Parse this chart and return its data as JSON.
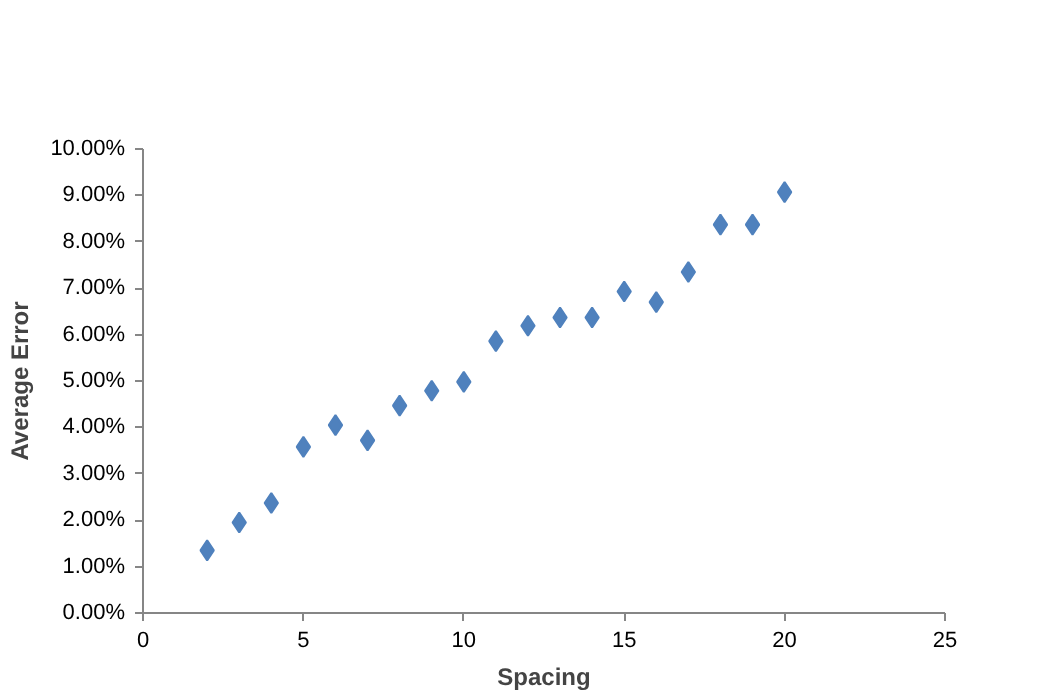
{
  "chart_data": {
    "type": "scatter",
    "xlabel": "Spacing",
    "ylabel": "Average Error",
    "x": [
      2,
      3,
      4,
      5,
      6,
      7,
      8,
      9,
      10,
      11,
      12,
      13,
      14,
      15,
      16,
      17,
      18,
      19,
      20
    ],
    "values": [
      1.35,
      1.95,
      2.37,
      3.58,
      4.05,
      3.72,
      4.47,
      4.79,
      4.98,
      5.86,
      6.19,
      6.37,
      6.37,
      6.93,
      6.7,
      7.35,
      8.37,
      8.37,
      9.07
    ],
    "color": "#4f81bd",
    "marker": "diamond",
    "grid": false,
    "xlim": [
      0,
      25
    ],
    "xticks": [
      0,
      5,
      10,
      15,
      20,
      25
    ],
    "ylim": [
      0,
      10
    ],
    "yticks": [
      {
        "value": 0,
        "label": "0.00%"
      },
      {
        "value": 1,
        "label": "1.00%"
      },
      {
        "value": 2,
        "label": "2.00%"
      },
      {
        "value": 3,
        "label": "3.00%"
      },
      {
        "value": 4,
        "label": "4.00%"
      },
      {
        "value": 5,
        "label": "5.00%"
      },
      {
        "value": 6,
        "label": "6.00%"
      },
      {
        "value": 7,
        "label": "7.00%"
      },
      {
        "value": 8,
        "label": "8.00%"
      },
      {
        "value": 9,
        "label": "9.00%"
      },
      {
        "value": 10,
        "label": "10.00%"
      }
    ]
  }
}
